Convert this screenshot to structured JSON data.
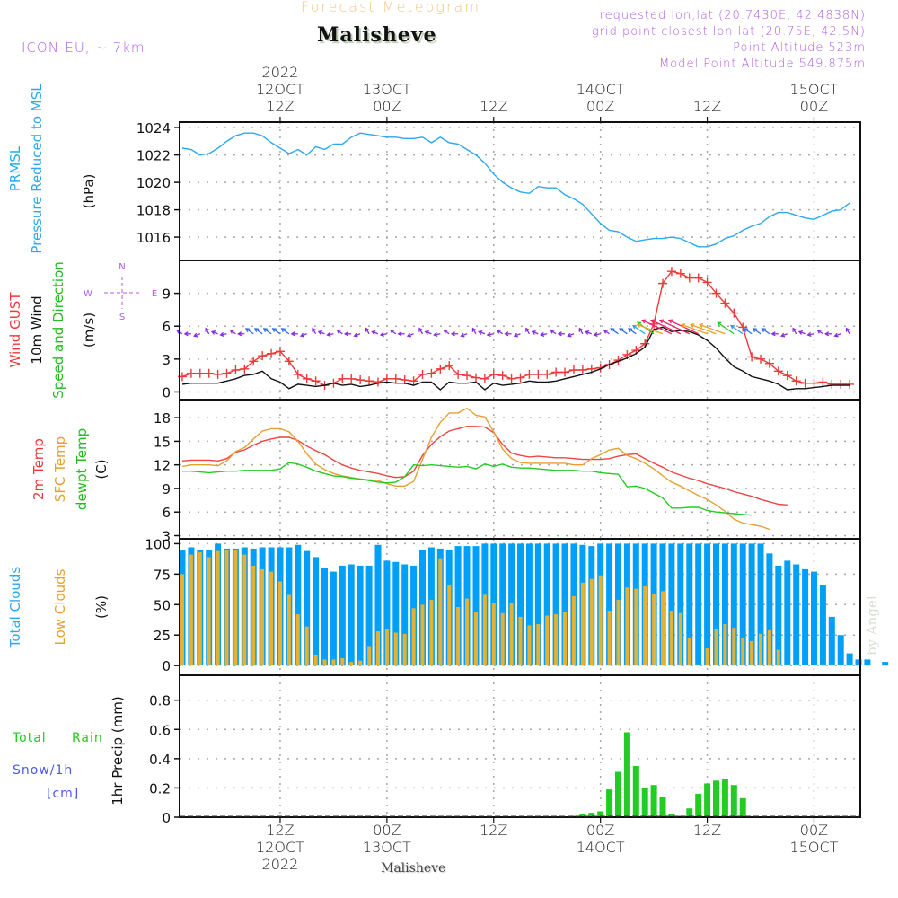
{
  "header": {
    "supertitle": "Forecast Meteogram",
    "station": "Malisheve",
    "model": "ICON-EU, ~ 7km",
    "requested": "requested lon,lat (20.7430E, 42.4838N)",
    "grid_point": "grid point closest lon,lat (20.75E, 42.5N)",
    "point_altitude": "Point Altitude 523m",
    "model_altitude": "Model Point Altitude 549.875m",
    "credit": "by Angel",
    "footer_station": "Malisheve"
  },
  "time_axis": {
    "top_ticks": [
      {
        "hour": 35,
        "lines": [
          "2022",
          "12OCT",
          "12Z"
        ]
      },
      {
        "hour": 47,
        "lines": [
          "13OCT",
          "00Z"
        ]
      },
      {
        "hour": 59,
        "lines": [
          "12Z"
        ]
      },
      {
        "hour": 71,
        "lines": [
          "14OCT",
          "00Z"
        ]
      },
      {
        "hour": 83,
        "lines": [
          "12Z"
        ]
      },
      {
        "hour": 95,
        "lines": [
          "15OCT",
          "00Z"
        ]
      }
    ],
    "bottom_ticks": [
      {
        "hour": 35,
        "lines": [
          "12Z",
          "12OCT",
          "2022"
        ]
      },
      {
        "hour": 47,
        "lines": [
          "00Z",
          "13OCT"
        ]
      },
      {
        "hour": 59,
        "lines": [
          "12Z"
        ]
      },
      {
        "hour": 71,
        "lines": [
          "00Z",
          "14OCT"
        ]
      },
      {
        "hour": 83,
        "lines": [
          "12Z"
        ]
      },
      {
        "hour": 95,
        "lines": [
          "00Z",
          "15OCT"
        ]
      }
    ],
    "start_hour": 23.7,
    "end_hour": 100.2,
    "note": "hours counted from 11 Oct 2022 00Z"
  },
  "chart_data": [
    {
      "type": "line",
      "name": "pressure",
      "ylabel_lines": [
        {
          "text": "PRMSL",
          "color": "#2aa8f0"
        },
        {
          "text": "Pressure Reduced to MSL",
          "color": "#2aa8f0"
        },
        {
          "text": "(hPa)",
          "color": "#111111"
        }
      ],
      "yticks": [
        1016,
        1018,
        1020,
        1022,
        1024
      ],
      "ylim": [
        1014.3,
        1024.4
      ],
      "x_start": 24,
      "series": [
        {
          "name": "PRMSL",
          "color": "#2aa8f0",
          "values": [
            1022.5,
            1022.4,
            1022.0,
            1022.1,
            1022.5,
            1023.0,
            1023.4,
            1023.6,
            1023.6,
            1023.4,
            1022.9,
            1022.5,
            1022.1,
            1022.4,
            1022.0,
            1022.6,
            1022.4,
            1022.8,
            1022.8,
            1023.3,
            1023.6,
            1023.5,
            1023.4,
            1023.3,
            1023.3,
            1023.2,
            1023.2,
            1023.3,
            1022.9,
            1023.3,
            1022.9,
            1022.8,
            1022.4,
            1022.0,
            1021.4,
            1020.6,
            1020.0,
            1019.6,
            1019.3,
            1019.2,
            1019.7,
            1019.6,
            1019.6,
            1019.1,
            1018.8,
            1018.4,
            1017.7,
            1017.0,
            1016.5,
            1016.4,
            1016.0,
            1015.7,
            1015.8,
            1015.9,
            1015.9,
            1016.0,
            1015.9,
            1015.6,
            1015.3,
            1015.3,
            1015.5,
            1015.9,
            1016.1,
            1016.5,
            1016.8,
            1017.0,
            1017.5,
            1017.8,
            1017.8,
            1017.6,
            1017.4,
            1017.3,
            1017.6,
            1017.9,
            1018.0,
            1018.5
          ]
        }
      ]
    },
    {
      "type": "line",
      "name": "wind",
      "ylabel_lines": [
        {
          "text": "Wind GUST",
          "color": "#ee3a3a"
        },
        {
          "text": "10m Wind",
          "color": "#111111"
        },
        {
          "text": "Speed and Direction",
          "color": "#22bb22"
        },
        {
          "text": "(m/s)",
          "color": "#111111"
        }
      ],
      "compass": {
        "n": "N",
        "s": "S",
        "e": "E",
        "w": "W",
        "color": "#b05ce0"
      },
      "yticks": [
        0,
        3,
        6,
        9
      ],
      "ylim": [
        -0.7,
        12.0
      ],
      "x_start": 24,
      "series": [
        {
          "name": "Wind GUST",
          "color": "#ee3a3a",
          "marker": "+",
          "values": [
            1.4,
            1.7,
            1.7,
            1.7,
            1.6,
            1.7,
            2.0,
            2.1,
            2.8,
            3.3,
            3.5,
            3.7,
            2.8,
            1.6,
            1.2,
            1.0,
            0.6,
            0.8,
            1.2,
            1.2,
            1.1,
            1.0,
            0.9,
            1.2,
            1.2,
            1.1,
            1.0,
            1.6,
            1.7,
            2.1,
            2.4,
            1.6,
            1.5,
            1.3,
            1.2,
            1.6,
            1.5,
            1.2,
            1.3,
            1.6,
            1.6,
            1.6,
            1.8,
            1.8,
            2.0,
            2.0,
            2.1,
            2.2,
            2.5,
            2.9,
            3.4,
            3.8,
            4.4,
            6.2,
            9.9,
            11.0,
            10.8,
            10.4,
            10.4,
            10.0,
            9.0,
            8.1,
            7.2,
            5.9,
            3.2,
            3.0,
            2.6,
            1.9,
            1.5,
            1.0,
            0.8,
            0.8,
            0.9,
            0.7,
            0.7,
            0.7
          ]
        },
        {
          "name": "10m Wind",
          "color": "#111111",
          "values": [
            0.7,
            0.8,
            0.8,
            0.8,
            0.8,
            1.0,
            1.2,
            1.5,
            1.6,
            1.9,
            1.2,
            0.9,
            0.3,
            0.7,
            0.6,
            0.5,
            0.6,
            0.8,
            0.6,
            0.7,
            0.5,
            0.6,
            0.8,
            0.9,
            0.8,
            0.8,
            0.6,
            0.9,
            0.9,
            0.2,
            0.9,
            0.8,
            0.8,
            0.9,
            0.2,
            0.8,
            0.6,
            0.7,
            0.8,
            1.0,
            0.9,
            0.9,
            1.0,
            1.2,
            1.4,
            1.6,
            1.8,
            2.1,
            2.5,
            2.8,
            3.1,
            3.5,
            4.1,
            5.7,
            5.9,
            5.5,
            5.6,
            5.5,
            5.2,
            4.7,
            4.0,
            3.1,
            2.3,
            1.9,
            1.4,
            1.2,
            1.0,
            0.7,
            0.2,
            0.3,
            0.3,
            0.4,
            0.5,
            0.6,
            0.6,
            0.6
          ]
        },
        {
          "name": "Wind direction arrows",
          "arrow_baseline": 5.3,
          "colors_by_speed": {
            "calm": "#8a2be2",
            "light": "#2a6af0",
            "moderate": "#22aadd",
            "fresh": "#22cc22",
            "strong": "#f0a020",
            "very_strong": "#ee2266"
          }
        }
      ]
    },
    {
      "type": "line",
      "name": "temperature",
      "ylabel_lines": [
        {
          "text": "2m Temp",
          "color": "#ee3a3a"
        },
        {
          "text": "SFC Temp",
          "color": "#e6a030"
        },
        {
          "text": "dewpt Temp",
          "color": "#22bb22"
        },
        {
          "text": "(C)",
          "color": "#111111"
        }
      ],
      "yticks": [
        3,
        6,
        9,
        12,
        15,
        18
      ],
      "ylim": [
        2.6,
        20.3
      ],
      "x_start": 24,
      "series": [
        {
          "name": "2m Temp",
          "color": "#ee4444",
          "values": [
            12.5,
            12.6,
            12.6,
            12.6,
            12.5,
            12.8,
            13.6,
            13.9,
            14.5,
            15.0,
            15.3,
            15.5,
            15.5,
            15.1,
            14.4,
            13.8,
            13.3,
            12.6,
            12.0,
            11.6,
            11.3,
            11.1,
            10.9,
            10.6,
            10.4,
            10.5,
            11.2,
            13.2,
            14.6,
            15.6,
            16.3,
            16.6,
            16.9,
            16.9,
            16.8,
            16.1,
            14.6,
            13.5,
            13.2,
            13.0,
            13.1,
            13.0,
            12.9,
            12.9,
            12.8,
            12.7,
            12.7,
            12.7,
            12.8,
            13.1,
            13.3,
            13.4,
            12.8,
            12.2,
            11.7,
            11.1,
            10.7,
            10.3,
            10.0,
            9.6,
            9.3,
            9.0,
            8.6,
            8.3,
            8.0,
            7.6,
            7.3,
            7.0,
            6.9
          ]
        },
        {
          "name": "SFC Temp",
          "color": "#e6a030",
          "values": [
            11.8,
            12.0,
            12.0,
            12.0,
            11.9,
            12.5,
            13.7,
            14.2,
            15.3,
            16.3,
            16.6,
            16.6,
            16.2,
            15.0,
            13.4,
            12.1,
            11.4,
            10.9,
            10.6,
            10.4,
            10.2,
            10.1,
            10.0,
            9.6,
            9.3,
            9.3,
            9.9,
            12.7,
            15.5,
            17.4,
            18.6,
            18.6,
            19.2,
            18.3,
            18.1,
            16.2,
            14.0,
            12.8,
            12.3,
            12.2,
            12.2,
            12.2,
            12.2,
            12.2,
            12.0,
            12.0,
            12.8,
            13.3,
            13.9,
            14.1,
            13.2,
            12.8,
            12.2,
            11.5,
            10.6,
            9.8,
            9.3,
            8.7,
            8.1,
            7.6,
            6.9,
            6.1,
            5.1,
            4.6,
            4.4,
            4.2,
            3.8
          ]
        },
        {
          "name": "dewpt Temp",
          "color": "#22cc22",
          "values": [
            11.2,
            11.2,
            11.1,
            11.0,
            11.1,
            11.2,
            11.2,
            11.3,
            11.3,
            11.3,
            11.3,
            11.5,
            12.3,
            12.1,
            11.7,
            11.2,
            10.9,
            10.6,
            10.5,
            10.3,
            10.2,
            10.0,
            9.8,
            9.7,
            9.8,
            10.5,
            12.0,
            11.9,
            12.0,
            11.9,
            11.8,
            11.7,
            11.8,
            11.5,
            12.1,
            11.8,
            12.1,
            11.7,
            11.6,
            11.6,
            11.5,
            11.4,
            11.3,
            11.3,
            11.3,
            11.2,
            11.2,
            11.0,
            10.9,
            10.8,
            9.2,
            9.3,
            9.0,
            8.4,
            7.8,
            6.5,
            6.5,
            6.6,
            6.6,
            6.2,
            6.0,
            5.9,
            5.8,
            5.7,
            5.6
          ]
        }
      ]
    },
    {
      "type": "bar",
      "name": "clouds",
      "ylabel_lines": [
        {
          "text": "Total Clouds",
          "color": "#2aa8f0"
        },
        {
          "text": "Low Clouds",
          "color": "#e6a030"
        },
        {
          "text": "(%)",
          "color": "#111111"
        }
      ],
      "yticks": [
        0,
        25,
        50,
        75,
        100
      ],
      "ylim": [
        -8,
        104
      ],
      "x_start": 24,
      "series": [
        {
          "name": "Total Clouds",
          "color": "#00a0f8",
          "values": [
            95,
            97,
            95,
            95,
            100,
            96,
            96,
            97,
            96,
            97,
            97,
            97,
            97,
            99,
            94,
            89,
            80,
            77,
            82,
            83,
            82,
            82,
            99,
            86,
            85,
            83,
            82,
            95,
            97,
            96,
            95,
            98,
            98,
            98,
            100,
            100,
            100,
            100,
            100,
            100,
            100,
            100,
            100,
            100,
            100,
            99,
            98,
            100,
            100,
            100,
            100,
            100,
            100,
            100,
            100,
            100,
            100,
            100,
            100,
            100,
            100,
            100,
            100,
            100,
            100,
            100,
            92,
            82,
            86,
            83,
            79,
            77,
            66,
            40,
            25,
            10,
            5,
            5,
            0,
            3
          ]
        },
        {
          "name": "Low Clouds",
          "color": "#e6b030",
          "values": [
            75,
            91,
            93,
            89,
            94,
            95,
            95,
            91,
            82,
            79,
            77,
            69,
            58,
            42,
            32,
            9,
            5,
            5,
            6,
            3,
            4,
            16,
            28,
            30,
            27,
            26,
            47,
            50,
            54,
            88,
            66,
            48,
            55,
            44,
            58,
            51,
            43,
            51,
            40,
            33,
            34,
            41,
            42,
            44,
            57,
            68,
            71,
            74,
            45,
            54,
            64,
            63,
            65,
            59,
            61,
            45,
            43,
            23,
            1,
            14,
            30,
            34,
            31,
            23,
            20,
            26,
            29,
            13,
            1,
            1,
            0,
            0,
            1,
            1,
            0,
            0
          ]
        }
      ]
    },
    {
      "type": "bar",
      "name": "precipitation",
      "ylabel_lines": [
        {
          "text": "Total",
          "color": "#22cc22"
        },
        {
          "text": "Rain",
          "color": "#22cc22"
        },
        {
          "text": "Snow/1h",
          "color": "#4a5af0"
        },
        {
          "text": "[cm]",
          "color": "#4a5af0"
        },
        {
          "text": "1hr Precip (mm)",
          "color": "#111111"
        }
      ],
      "yticks": [
        0,
        0.2,
        0.4,
        0.6,
        0.8
      ],
      "ylim": [
        0,
        0.97
      ],
      "x_start": 67,
      "series": [
        {
          "name": "Total Rain",
          "color": "#22cc22",
          "values": [
            0.0,
            0.01,
            0.02,
            0.03,
            0.04,
            0.19,
            0.31,
            0.58,
            0.35,
            0.2,
            0.22,
            0.14,
            0.02,
            0.01,
            0.06,
            0.16,
            0.23,
            0.25,
            0.26,
            0.22,
            0.13,
            0.0
          ]
        }
      ]
    }
  ]
}
